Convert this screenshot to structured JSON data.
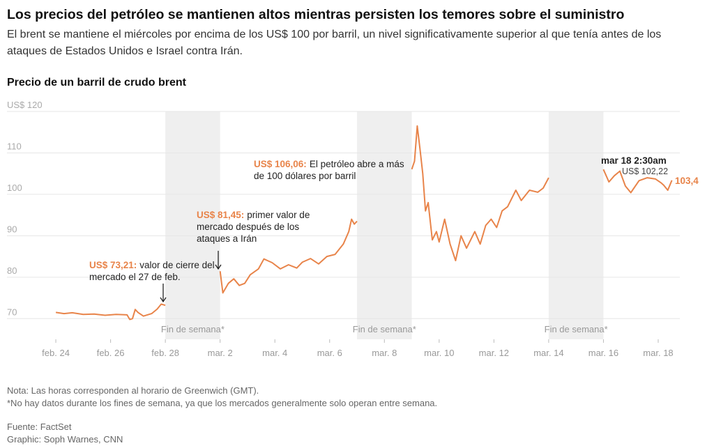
{
  "chart_data": {
    "type": "line",
    "title": "Los precios del petróleo se mantienen altos mientras persisten los temores sobre el suministro",
    "subtitle_lines": [
      "El brent se mantiene el miércoles por encima de los US$ 100 por barril, un nivel significativamente superior al que tenía antes de los",
      "ataques de Estados Unidos e Israel contra Irán."
    ],
    "chart_title": "Precio de un barril de crudo brent",
    "color": "#e8844a",
    "xlim": [
      -0.46,
      22.79
    ],
    "xticks": [
      {
        "value": 0,
        "label": "feb. 24"
      },
      {
        "value": 2,
        "label": "feb. 26"
      },
      {
        "value": 4,
        "label": "feb. 28"
      },
      {
        "value": 6,
        "label": "mar. 2"
      },
      {
        "value": 8,
        "label": "mar. 4"
      },
      {
        "value": 10,
        "label": "mar. 6"
      },
      {
        "value": 12,
        "label": "mar. 8"
      },
      {
        "value": 14,
        "label": "mar. 10"
      },
      {
        "value": 16,
        "label": "mar. 12"
      },
      {
        "value": 18,
        "label": "mar. 14"
      },
      {
        "value": 20,
        "label": "mar. 16"
      },
      {
        "value": 22,
        "label": "mar. 18"
      }
    ],
    "ylim": [
      65,
      120
    ],
    "yticks": [
      70,
      80,
      90,
      100,
      110,
      {
        "value": 120,
        "label": "US$ 120"
      }
    ],
    "grid": true,
    "shaded_ranges": [
      {
        "range": [
          4,
          6
        ],
        "label": "Fin de semana*"
      },
      {
        "range": [
          11,
          13
        ],
        "label": "Fin de semana*"
      },
      {
        "range": [
          18,
          20
        ],
        "label": "Fin de semana*"
      }
    ],
    "x": [
      0,
      0.3,
      0.6,
      1,
      1.4,
      1.8,
      2.2,
      2.6,
      2.7,
      2.8,
      2.9,
      3.0,
      3.2,
      3.5,
      3.7,
      3.85,
      4,
      5,
      6,
      6.1,
      6.3,
      6.5,
      6.7,
      6.9,
      7.1,
      7.4,
      7.6,
      7.9,
      8.2,
      8.5,
      8.8,
      9.0,
      9.3,
      9.6,
      9.9,
      10.2,
      10.5,
      10.7,
      10.8,
      10.9,
      11,
      12,
      13,
      13.1,
      13.2,
      13.3,
      13.4,
      13.5,
      13.6,
      13.75,
      13.9,
      14.0,
      14.2,
      14.4,
      14.6,
      14.8,
      15.0,
      15.3,
      15.5,
      15.7,
      15.9,
      16.1,
      16.3,
      16.5,
      16.8,
      17.0,
      17.3,
      17.6,
      17.8,
      18,
      19,
      20,
      20.2,
      20.4,
      20.6,
      20.8,
      21,
      21.3,
      21.6,
      21.9,
      22.1,
      22.2,
      22.35,
      22.5
    ],
    "values": [
      71.5,
      71.2,
      71.4,
      71,
      71.1,
      70.8,
      71,
      70.9,
      69.8,
      70,
      72.2,
      71.5,
      70.6,
      71.2,
      72.3,
      73.5,
      73.21,
      null,
      81.45,
      76.2,
      78.5,
      79.6,
      78,
      78.5,
      80.6,
      82,
      84.4,
      83.5,
      82,
      83,
      82.2,
      83.6,
      84.5,
      83.2,
      85,
      85.5,
      88,
      91,
      94,
      92.8,
      93.5,
      null,
      106.06,
      108,
      116.5,
      111,
      105,
      96,
      98,
      89,
      91,
      88.5,
      94,
      88,
      84,
      90,
      87,
      91,
      88,
      92.5,
      94,
      92,
      96,
      97,
      101,
      98.5,
      101,
      100.5,
      101.5,
      104,
      null,
      106,
      103,
      104.5,
      105.6,
      102,
      100.4,
      103.3,
      104,
      103.7,
      102.8,
      102.22,
      101,
      103.4
    ],
    "annotations": [
      {
        "highlight": "US$ 73,21:",
        "lines": [
          "valor de cierre del",
          "mercado el 27 de feb."
        ]
      },
      {
        "highlight": "US$ 81,45:",
        "lines": [
          "primer valor de",
          "mercado después de los",
          "ataques a Irán"
        ]
      },
      {
        "highlight": "US$ 106,06:",
        "lines": [
          "El petróleo abre a más",
          "de 100 dólares por barril"
        ]
      }
    ],
    "marker_label": "mar 18 2:30am",
    "marker_value_label": "US$ 102,22",
    "last_value_label": "103,4",
    "notes": [
      "Nota: Las horas corresponden al horario de Greenwich (GMT).",
      "*No hay datos durante los fines de semana, ya que los mercados generalmente solo operan entre semana."
    ],
    "source": "Fuente: FactSet",
    "credit": "Graphic: Soph Warnes, CNN"
  }
}
